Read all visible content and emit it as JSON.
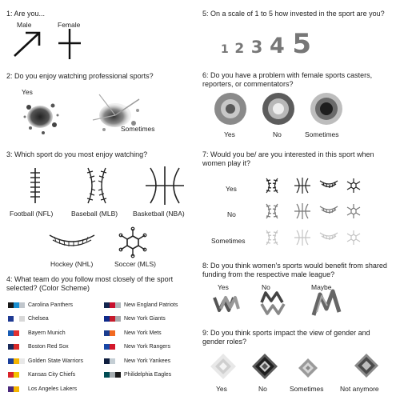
{
  "q1": {
    "title": "1: Are you...",
    "options": [
      "Male",
      "Female"
    ],
    "icons": [
      "male-arrow-icon",
      "female-plus-icon"
    ]
  },
  "q2": {
    "title": "2: Do you enjoy watching professional sports?",
    "options": [
      "Yes",
      "Sometimes"
    ],
    "icons": [
      "ink-splatter-dark-icon",
      "ink-splatter-light-icon"
    ]
  },
  "q3": {
    "title": "3: Which sport do you most enjoy watching?",
    "options": [
      "Football (NFL)",
      "Baseball (MLB)",
      "Basketball (NBA)",
      "Hockey (NHL)",
      "Soccer (MLS)"
    ]
  },
  "q4": {
    "title": "4: What team do you follow most closely of the sport selected? (Color Scheme)",
    "teams": [
      {
        "name": "Carolina Panthers",
        "colors": [
          "#1a1a1a",
          "#1a8fd0",
          "#c0c6cc"
        ]
      },
      {
        "name": "Chelsea",
        "colors": [
          "#1f3a93",
          "#ffffff",
          "#d8d8d8"
        ]
      },
      {
        "name": "Bayern Munich",
        "colors": [
          "#1a5cb4",
          "#e23030",
          "#ffffff"
        ]
      },
      {
        "name": "Boston Red Sox",
        "colors": [
          "#1a2a5a",
          "#d92a2a",
          "#ffffff"
        ]
      },
      {
        "name": "Golden State Warriors",
        "colors": [
          "#1b3f9c",
          "#f5b400",
          "#e8e8e8"
        ]
      },
      {
        "name": "Kansas City Chiefs",
        "colors": [
          "#d9242a",
          "#f2c200",
          "#ffffff"
        ]
      },
      {
        "name": "Los Angeles Lakers",
        "colors": [
          "#4b2a7d",
          "#f5b400",
          "#ffffff"
        ]
      },
      {
        "name": "New England Patriots",
        "colors": [
          "#13264f",
          "#c8102e",
          "#b0b7bc"
        ]
      },
      {
        "name": "New York Giants",
        "colors": [
          "#0e2a8a",
          "#c61b2b",
          "#a7a9ac"
        ]
      },
      {
        "name": "New York Mets",
        "colors": [
          "#1a3d8f",
          "#f26a21",
          "#ffffff"
        ]
      },
      {
        "name": "New York Rangers",
        "colors": [
          "#1747a6",
          "#d4172a",
          "#ffffff"
        ]
      },
      {
        "name": "New York Yankees",
        "colors": [
          "#0f1e3f",
          "#c4ced4",
          "#ffffff"
        ]
      },
      {
        "name": "Philidelphia Eagles",
        "colors": [
          "#004c54",
          "#a5acaf",
          "#1a1a1a"
        ]
      }
    ]
  },
  "q5": {
    "title": "5: On a scale of 1 to 5 how invested in the sport are you?",
    "options": [
      "1",
      "2",
      "3",
      "4",
      "5"
    ]
  },
  "q6": {
    "title": "6: Do you have a problem with female sports casters, reporters, or commentators?",
    "options": [
      "Yes",
      "No",
      "Sometimes"
    ]
  },
  "q7": {
    "title": "7: Would you be/ are you interested in this sport when women play it?",
    "rows": [
      "Yes",
      "No",
      "Sometimes"
    ]
  },
  "q8": {
    "title": "8: Do you think women's sports would benefit from shared funding from the respective male league?",
    "options": [
      "Yes",
      "No",
      "Maybe"
    ]
  },
  "q9": {
    "title": "9: Do you think sports impact the view of gender and gender roles?",
    "options": [
      "Yes",
      "No",
      "Sometimes",
      "Not anymore"
    ]
  }
}
